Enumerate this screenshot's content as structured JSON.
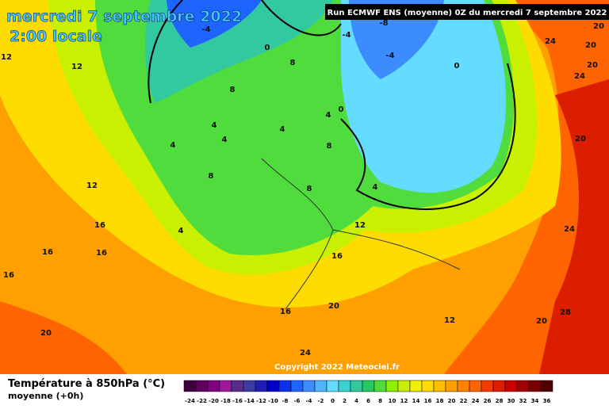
{
  "header": {
    "title_line1": "mercredi 7 septembre 2022",
    "title_line2": "2:00 locale",
    "run_info": "Run ECMWF ENS (moyenne) 0Z du mercredi 7 septembre 2022"
  },
  "map": {
    "contour_labels": [
      12,
      12,
      -4,
      0,
      8,
      8,
      -4,
      -8,
      -4,
      0,
      0,
      4,
      4,
      4,
      4,
      4,
      8,
      8,
      8,
      12,
      4,
      16,
      16,
      16,
      16,
      4,
      12,
      16,
      20,
      16,
      12,
      20,
      28,
      20,
      24,
      24,
      20,
      24,
      20,
      24,
      20,
      20
    ],
    "copyright": "Copyright 2022 Meteociel.fr"
  },
  "footer": {
    "legend_title": "Température à 850hPa (°C)",
    "legend_subtitle": "moyenne  (+0h)"
  },
  "colorbar": {
    "ticks": [
      -24,
      -22,
      -20,
      -18,
      -16,
      -14,
      -12,
      -10,
      -8,
      -6,
      -4,
      -2,
      0,
      2,
      4,
      6,
      8,
      10,
      12,
      14,
      16,
      18,
      20,
      22,
      24,
      26,
      28,
      30,
      32,
      34,
      36
    ],
    "colors": [
      "#400040",
      "#600060",
      "#800080",
      "#9a1a9a",
      "#5a2d8c",
      "#3c3ca0",
      "#1e1eb4",
      "#0000c8",
      "#0a32e6",
      "#1e64ff",
      "#3c8cff",
      "#50b4ff",
      "#64dcff",
      "#3cd2d2",
      "#32c8a0",
      "#28c864",
      "#50dc3c",
      "#8cf000",
      "#c8f000",
      "#f0f000",
      "#ffdc00",
      "#ffbe00",
      "#ffa000",
      "#ff8200",
      "#ff6400",
      "#f03c00",
      "#dc1e00",
      "#c80000",
      "#a00000",
      "#780000",
      "#500000"
    ]
  }
}
